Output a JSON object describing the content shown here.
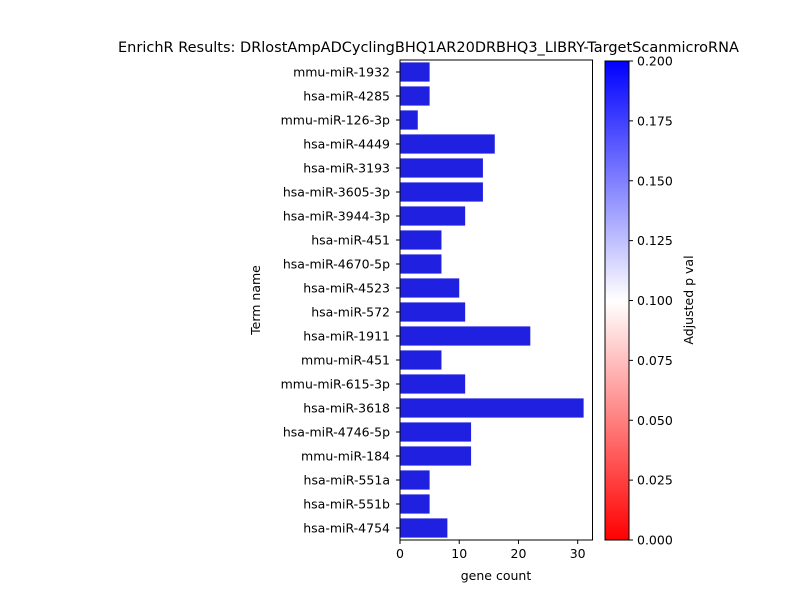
{
  "chart_data": {
    "type": "bar",
    "orientation": "horizontal",
    "title": "EnrichR Results: DRlostAmpADCyclingBHQ1AR20DRBHQ3_LIBRY-TargetScanmicroRNA",
    "xlabel": "gene count",
    "ylabel": "Term name",
    "xlim": [
      0,
      32.5
    ],
    "xticks": [
      0,
      10,
      20,
      30
    ],
    "grid": false,
    "bar_color": "#2020e0",
    "categories": [
      "mmu-miR-1932",
      "hsa-miR-4285",
      "mmu-miR-126-3p",
      "hsa-miR-4449",
      "hsa-miR-3193",
      "hsa-miR-3605-3p",
      "hsa-miR-3944-3p",
      "hsa-miR-451",
      "hsa-miR-4670-5p",
      "hsa-miR-4523",
      "hsa-miR-572",
      "hsa-miR-1911",
      "mmu-miR-451",
      "mmu-miR-615-3p",
      "hsa-miR-3618",
      "hsa-miR-4746-5p",
      "mmu-miR-184",
      "hsa-miR-551a",
      "hsa-miR-551b",
      "hsa-miR-4754"
    ],
    "values": [
      5,
      5,
      3,
      16,
      14,
      14,
      11,
      7,
      7,
      10,
      11,
      22,
      7,
      11,
      31,
      12,
      12,
      5,
      5,
      8
    ],
    "colorbar": {
      "label": "Adjusted p val",
      "range": [
        0,
        0.2
      ],
      "ticks": [
        "0.000",
        "0.025",
        "0.050",
        "0.075",
        "0.100",
        "0.125",
        "0.150",
        "0.175",
        "0.200"
      ],
      "colors": [
        "#ff0000",
        "#ffffff",
        "#0000ff"
      ]
    }
  }
}
